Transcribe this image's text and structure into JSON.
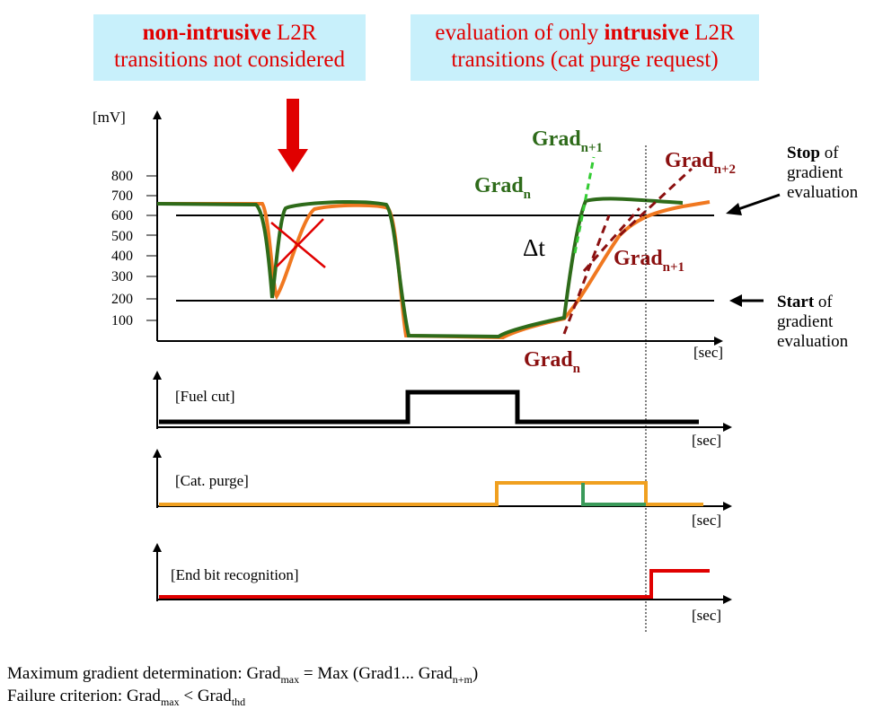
{
  "boxes": {
    "left": {
      "bold": "non-intrusive",
      "rest": " L2R",
      "line2": "transitions not considered"
    },
    "right": {
      "line1a": "evaluation of only ",
      "bold": "intrusive",
      "rest": " L2R",
      "line2": "transitions (cat purge request)"
    }
  },
  "main_chart": {
    "y_unit": "[mV]",
    "y_ticks": [
      "800",
      "700",
      "600",
      "500",
      "400",
      "300",
      "200",
      "100"
    ],
    "x_unit": "[sec]",
    "threshold_upper": 600,
    "threshold_lower": 200,
    "delta_label": "Δt"
  },
  "labels": {
    "grad_base": "Grad",
    "green_n_sub": "n",
    "green_n1_sub": "n+1",
    "red_n2_sub": "n+2",
    "red_n1_sub": "n+1",
    "red_n_sub": "n"
  },
  "side_notes": {
    "stop_bold": "Stop",
    "stop_rest": " of",
    "stop_l2": "gradient",
    "stop_l3": "evaluation",
    "start_bold": "Start",
    "start_rest": " of",
    "start_l2": "gradient",
    "start_l3": "evaluation"
  },
  "signals": {
    "fuel_cut": "[Fuel cut]",
    "cat_purge": "[Cat. purge]",
    "end_bit": "[End bit recognition]",
    "x_unit": "[sec]"
  },
  "formulas": {
    "line1_prefix": "Maximum gradient determination: Grad",
    "line1_sub1": "max",
    "line1_mid": " = Max (Grad1... Grad",
    "line1_sub2": "n+m",
    "line1_end": ")",
    "line2_prefix": "Failure criterion: Grad",
    "line2_sub1": "max",
    "line2_mid": " < Grad",
    "line2_sub2": "thd"
  },
  "colors": {
    "green_sensor": "#2e6b1a",
    "orange_sensor": "#f07820",
    "dark_red": "#8b1010",
    "bright_green": "#33cc33",
    "red": "#e00000",
    "fuel_cut_signal": "#000000",
    "cat_purge_signal": "#f0a020",
    "cat_purge_alt": "#3a9a5a",
    "end_bit_signal": "#e00000",
    "box_bg": "#c8f0fb"
  }
}
